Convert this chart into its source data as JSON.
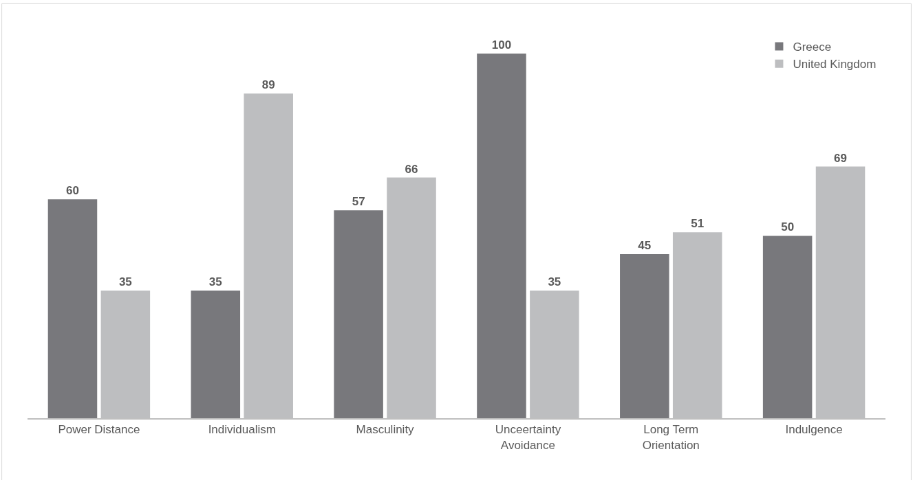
{
  "chart_data": {
    "type": "bar",
    "categories": [
      "Power Distance",
      "Individualism",
      "Masculinity",
      "Unceertainty Avoidance",
      "Long Term Orientation",
      "Indulgence"
    ],
    "series": [
      {
        "name": "Greece",
        "color": "#78787c",
        "values": [
          60,
          35,
          57,
          100,
          45,
          50
        ]
      },
      {
        "name": "United Kingdom",
        "color": "#bdbec0",
        "values": [
          35,
          89,
          66,
          35,
          51,
          69
        ]
      }
    ],
    "data_labels": true,
    "legend": "top right"
  }
}
